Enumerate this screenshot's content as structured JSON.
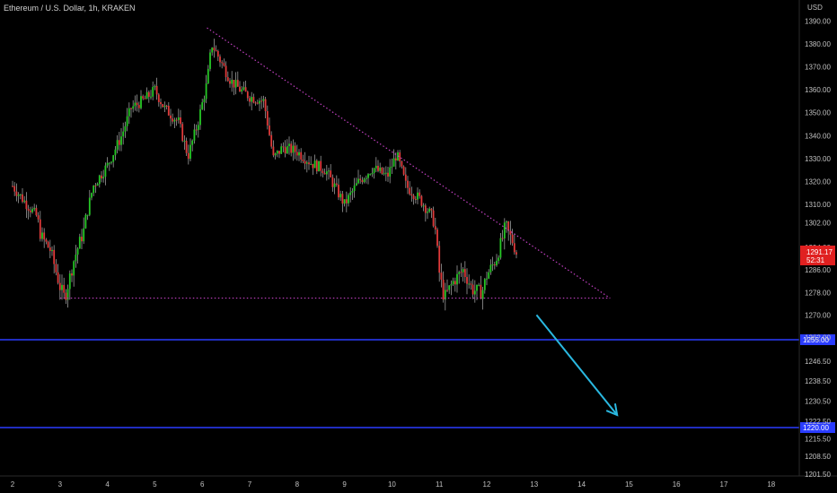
{
  "header": {
    "title": "Ethereum / U.S. Dollar, 1h, KRAKEN"
  },
  "colors": {
    "background": "#000000",
    "up": "#26c826",
    "down": "#e03a3a",
    "trendline": "#c040c0",
    "level": "#2a3cff",
    "arrow": "#2ab8e0",
    "last_price_badge": "#e02020"
  },
  "chart_data": {
    "type": "candlestick",
    "ylabel": "USD",
    "x_ticks": [
      "2",
      "3",
      "4",
      "5",
      "6",
      "7",
      "8",
      "9",
      "10",
      "11",
      "12",
      "13",
      "14",
      "15",
      "16",
      "17",
      "18"
    ],
    "y_ticks": [
      "1390.00",
      "1380.00",
      "1370.00",
      "1360.00",
      "1350.00",
      "1340.00",
      "1330.00",
      "1320.00",
      "1310.00",
      "1302.00",
      "1294.00",
      "1286.00",
      "1278.00",
      "1270.00",
      "1262.00",
      "1246.50",
      "1238.50",
      "1230.50",
      "1222.50",
      "1215.50",
      "1208.50",
      "1201.50"
    ],
    "last_price": {
      "value": "1291.17",
      "countdown": "52:31"
    },
    "price_path": [
      {
        "day": 2.0,
        "price": 1318
      },
      {
        "day": 2.3,
        "price": 1310
      },
      {
        "day": 2.5,
        "price": 1305
      },
      {
        "day": 2.6,
        "price": 1298
      },
      {
        "day": 2.8,
        "price": 1293
      },
      {
        "day": 3.0,
        "price": 1280
      },
      {
        "day": 3.1,
        "price": 1276
      },
      {
        "day": 3.3,
        "price": 1290
      },
      {
        "day": 3.5,
        "price": 1300
      },
      {
        "day": 3.7,
        "price": 1318
      },
      {
        "day": 4.0,
        "price": 1327
      },
      {
        "day": 4.3,
        "price": 1340
      },
      {
        "day": 4.5,
        "price": 1352
      },
      {
        "day": 4.8,
        "price": 1356
      },
      {
        "day": 5.0,
        "price": 1360
      },
      {
        "day": 5.2,
        "price": 1352
      },
      {
        "day": 5.5,
        "price": 1346
      },
      {
        "day": 5.7,
        "price": 1331
      },
      {
        "day": 5.9,
        "price": 1345
      },
      {
        "day": 6.1,
        "price": 1363
      },
      {
        "day": 6.2,
        "price": 1380
      },
      {
        "day": 6.4,
        "price": 1372
      },
      {
        "day": 6.6,
        "price": 1364
      },
      {
        "day": 6.8,
        "price": 1360
      },
      {
        "day": 7.0,
        "price": 1357
      },
      {
        "day": 7.3,
        "price": 1355
      },
      {
        "day": 7.5,
        "price": 1330
      },
      {
        "day": 7.7,
        "price": 1335
      },
      {
        "day": 8.0,
        "price": 1333
      },
      {
        "day": 8.3,
        "price": 1328
      },
      {
        "day": 8.6,
        "price": 1325
      },
      {
        "day": 9.0,
        "price": 1310
      },
      {
        "day": 9.3,
        "price": 1320
      },
      {
        "day": 9.6,
        "price": 1326
      },
      {
        "day": 9.9,
        "price": 1322
      },
      {
        "day": 10.1,
        "price": 1332
      },
      {
        "day": 10.3,
        "price": 1318
      },
      {
        "day": 10.6,
        "price": 1312
      },
      {
        "day": 10.9,
        "price": 1303
      },
      {
        "day": 11.0,
        "price": 1285
      },
      {
        "day": 11.1,
        "price": 1276
      },
      {
        "day": 11.3,
        "price": 1282
      },
      {
        "day": 11.5,
        "price": 1286
      },
      {
        "day": 11.7,
        "price": 1279
      },
      {
        "day": 11.9,
        "price": 1278
      },
      {
        "day": 12.0,
        "price": 1284
      },
      {
        "day": 12.2,
        "price": 1290
      },
      {
        "day": 12.4,
        "price": 1301
      },
      {
        "day": 12.55,
        "price": 1296
      },
      {
        "day": 12.65,
        "price": 1291
      }
    ],
    "annotations": {
      "descending_trendline": {
        "from": {
          "day": 6.1,
          "price": 1387
        },
        "to": {
          "day": 14.6,
          "price": 1276
        }
      },
      "support_line": {
        "from": {
          "day": 3.0,
          "price": 1276
        },
        "to": {
          "day": 14.6,
          "price": 1276
        }
      },
      "horizontal_levels": [
        {
          "price": 1255.0,
          "label": "1255.00"
        },
        {
          "price": 1220.0,
          "label": "1220.00"
        }
      ],
      "arrow": {
        "from": {
          "day": 13.05,
          "price": 1270
        },
        "to": {
          "day": 14.75,
          "price": 1225
        }
      }
    }
  }
}
